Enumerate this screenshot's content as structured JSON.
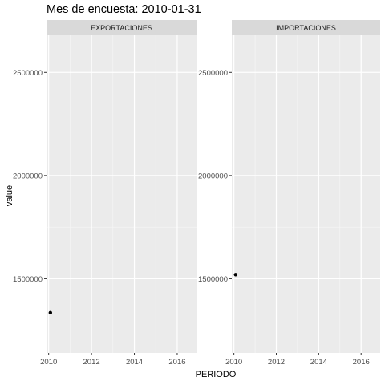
{
  "chart_data": {
    "type": "scatter",
    "title": "Mes de encuesta: 2010-01-31",
    "xlabel": "PERIODO",
    "ylabel": "value",
    "grid": true,
    "facets": [
      {
        "strip_label": "EXPORTACIONES",
        "xlim": [
          2009.9,
          2016.9
        ],
        "ylim": [
          1140000,
          2680000
        ],
        "x_ticks": [
          2010,
          2012,
          2014,
          2016
        ],
        "x_tick_labels": [
          "2010",
          "2012",
          "2014",
          "2016"
        ],
        "y_ticks": [
          1500000,
          2000000,
          2500000
        ],
        "y_tick_labels": [
          "1500000",
          "2000000",
          "2500000"
        ],
        "points": [
          {
            "x": 2010.08,
            "y": 1335000
          }
        ]
      },
      {
        "strip_label": "IMPORTACIONES",
        "xlim": [
          2009.9,
          2016.9
        ],
        "ylim": [
          1140000,
          2680000
        ],
        "x_ticks": [
          2010,
          2012,
          2014,
          2016
        ],
        "x_tick_labels": [
          "2010",
          "2012",
          "2014",
          "2016"
        ],
        "y_ticks": [
          1500000,
          2000000,
          2500000
        ],
        "y_tick_labels": [
          "1500000",
          "2000000",
          "2500000"
        ],
        "points": [
          {
            "x": 2010.08,
            "y": 1520000
          }
        ]
      }
    ]
  }
}
